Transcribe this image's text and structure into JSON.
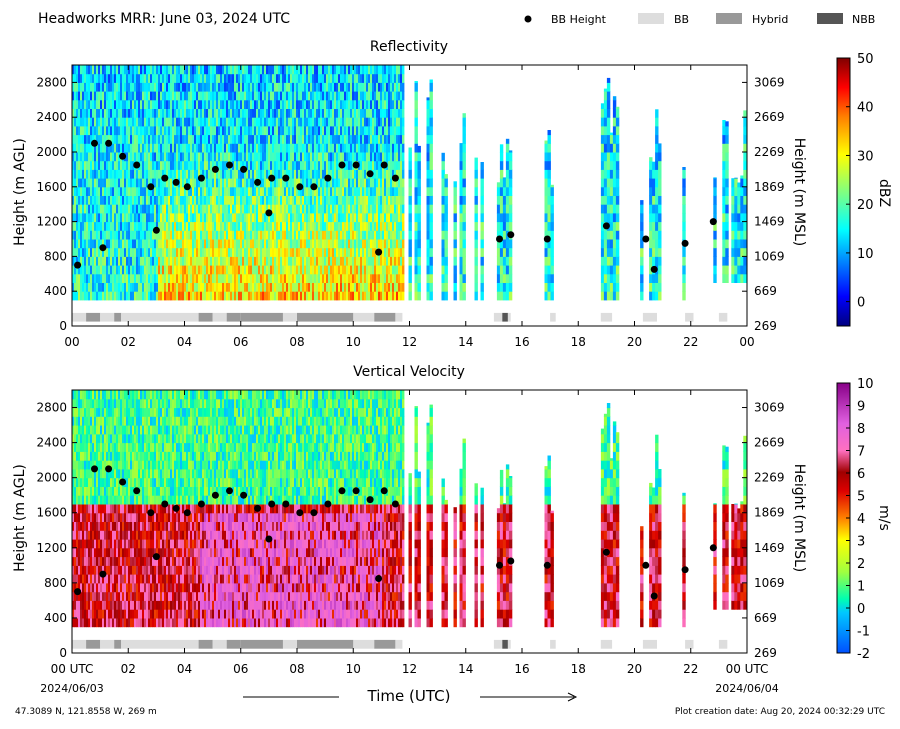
{
  "header": {
    "title": "Headworks MRR:  June 03, 2024 UTC",
    "legend": [
      {
        "label": "BB Height",
        "kind": "dot",
        "color": "#000000"
      },
      {
        "label": "BB",
        "kind": "box",
        "color": "#dddddd"
      },
      {
        "label": "Hybrid",
        "kind": "box",
        "color": "#999999"
      },
      {
        "label": "NBB",
        "kind": "box",
        "color": "#555555"
      }
    ]
  },
  "footer": {
    "location": "47.3089 N, 121.8558 W, 269 m",
    "creation": "Plot creation date: Aug 20, 2024 00:32:29 UTC",
    "xlabel": "Time (UTC)",
    "start_date": "2024/06/03",
    "end_date": "2024/06/04"
  },
  "chart_data": [
    {
      "type": "heatmap",
      "title": "Reflectivity",
      "xlabel": "Time (UTC)",
      "ylabel": "Height (m AGL)",
      "ylabel_right": "Height (m MSL)",
      "xlim": [
        0,
        24
      ],
      "ylim": [
        0,
        3000
      ],
      "x_ticks": [
        "00",
        "02",
        "04",
        "06",
        "08",
        "10",
        "12",
        "14",
        "16",
        "18",
        "20",
        "22",
        "00"
      ],
      "y_ticks": [
        0,
        400,
        800,
        1200,
        1600,
        2000,
        2400,
        2800
      ],
      "y_ticks_right": [
        269,
        669,
        1069,
        1469,
        1869,
        2269,
        2669,
        3069
      ],
      "colorbar": {
        "label": "dBZ",
        "min": -5,
        "max": 50,
        "ticks": [
          0,
          10,
          20,
          30,
          40,
          50
        ],
        "colormap": "jet"
      },
      "field": {
        "variable": "reflectivity",
        "base_value": 17,
        "height_gradient": -4,
        "core_value": 36,
        "core_top": 2000
      },
      "data_segments": [
        {
          "start": 0.0,
          "end": 11.75,
          "top": 3000,
          "bottom": 300,
          "coverage": "continuous"
        },
        {
          "start": 11.75,
          "end": 14.8,
          "top": 3000,
          "bottom": 300,
          "coverage": "sparse"
        },
        {
          "start": 15.0,
          "end": 15.7,
          "top": 2300,
          "bottom": 300,
          "coverage": "streaks"
        },
        {
          "start": 16.8,
          "end": 17.1,
          "top": 2300,
          "bottom": 300,
          "coverage": "streaks"
        },
        {
          "start": 18.7,
          "end": 19.4,
          "top": 2900,
          "bottom": 300,
          "coverage": "streaks"
        },
        {
          "start": 20.2,
          "end": 21.1,
          "top": 2600,
          "bottom": 300,
          "coverage": "streaks"
        },
        {
          "start": 21.7,
          "end": 22.1,
          "top": 2900,
          "bottom": 300,
          "coverage": "streaks"
        },
        {
          "start": 22.8,
          "end": 24.0,
          "top": 2900,
          "bottom": 500,
          "coverage": "streaks"
        }
      ]
    },
    {
      "type": "heatmap",
      "title": "Vertical Velocity",
      "xlabel": "Time (UTC)",
      "ylabel": "Height (m AGL)",
      "ylabel_right": "Height (m MSL)",
      "xlim": [
        0,
        24
      ],
      "ylim": [
        0,
        3000
      ],
      "x_ticks": [
        "00 UTC",
        "02",
        "04",
        "06",
        "08",
        "10",
        "12",
        "14",
        "16",
        "18",
        "20",
        "22",
        "00 UTC"
      ],
      "y_ticks": [
        0,
        400,
        800,
        1200,
        1600,
        2000,
        2400,
        2800
      ],
      "y_ticks_right": [
        269,
        669,
        1069,
        1469,
        1869,
        2269,
        2669,
        3069
      ],
      "colorbar": {
        "label": "m/s",
        "min": -2,
        "max": 10,
        "ticks": [
          -2,
          -1,
          0,
          1,
          2,
          3,
          4,
          5,
          6,
          7,
          8,
          9,
          10
        ],
        "colormap": "velocity"
      },
      "field": {
        "variable": "vertical velocity",
        "upper_value": 0.8,
        "lower_value": 6.0,
        "core_value": 7.2,
        "core_top": 1600
      },
      "data_segments": [
        {
          "start": 0.0,
          "end": 11.75,
          "top": 3000,
          "bottom": 300,
          "coverage": "continuous"
        },
        {
          "start": 11.75,
          "end": 14.8,
          "top": 3000,
          "bottom": 300,
          "coverage": "sparse"
        },
        {
          "start": 15.0,
          "end": 15.7,
          "top": 2300,
          "bottom": 300,
          "coverage": "streaks"
        },
        {
          "start": 16.8,
          "end": 17.1,
          "top": 2300,
          "bottom": 300,
          "coverage": "streaks"
        },
        {
          "start": 18.7,
          "end": 19.4,
          "top": 2900,
          "bottom": 300,
          "coverage": "streaks"
        },
        {
          "start": 20.2,
          "end": 21.1,
          "top": 2600,
          "bottom": 300,
          "coverage": "streaks"
        },
        {
          "start": 21.7,
          "end": 22.1,
          "top": 2900,
          "bottom": 300,
          "coverage": "streaks"
        },
        {
          "start": 22.8,
          "end": 24.0,
          "top": 2900,
          "bottom": 500,
          "coverage": "streaks"
        }
      ]
    }
  ],
  "bb_height": {
    "name": "BB Height",
    "x": [
      0.2,
      0.8,
      1.3,
      1.8,
      2.3,
      2.8,
      3.3,
      3.7,
      4.1,
      4.6,
      5.1,
      5.6,
      6.1,
      6.6,
      7.1,
      7.6,
      8.1,
      8.6,
      9.1,
      9.6,
      10.1,
      10.6,
      11.1,
      11.5,
      1.1,
      3.0,
      7.0,
      10.9,
      15.2,
      15.6,
      16.9,
      19.0,
      20.4,
      20.7,
      21.8,
      22.8
    ],
    "y": [
      700,
      2100,
      2100,
      1950,
      1850,
      1600,
      1700,
      1650,
      1600,
      1700,
      1800,
      1850,
      1800,
      1650,
      1700,
      1700,
      1600,
      1600,
      1700,
      1850,
      1850,
      1750,
      1850,
      1700,
      900,
      1100,
      1300,
      850,
      1000,
      1050,
      1000,
      1150,
      1000,
      650,
      950,
      1200
    ]
  },
  "bb_type": [
    {
      "start": 0.0,
      "end": 0.5,
      "type": "BB"
    },
    {
      "start": 0.5,
      "end": 1.0,
      "type": "Hybrid"
    },
    {
      "start": 1.0,
      "end": 1.5,
      "type": "BB"
    },
    {
      "start": 1.5,
      "end": 1.75,
      "type": "Hybrid"
    },
    {
      "start": 1.75,
      "end": 4.5,
      "type": "BB"
    },
    {
      "start": 4.5,
      "end": 5.0,
      "type": "Hybrid"
    },
    {
      "start": 5.0,
      "end": 5.5,
      "type": "BB"
    },
    {
      "start": 5.5,
      "end": 6.0,
      "type": "Hybrid"
    },
    {
      "start": 6.0,
      "end": 7.5,
      "type": "Hybrid"
    },
    {
      "start": 7.5,
      "end": 8.0,
      "type": "BB"
    },
    {
      "start": 8.0,
      "end": 10.0,
      "type": "Hybrid"
    },
    {
      "start": 10.0,
      "end": 10.75,
      "type": "BB"
    },
    {
      "start": 10.75,
      "end": 11.5,
      "type": "Hybrid"
    },
    {
      "start": 11.5,
      "end": 11.75,
      "type": "BB"
    },
    {
      "start": 15.0,
      "end": 15.3,
      "type": "BB"
    },
    {
      "start": 15.3,
      "end": 15.5,
      "type": "NBB"
    },
    {
      "start": 15.5,
      "end": 15.6,
      "type": "BB"
    },
    {
      "start": 17.0,
      "end": 17.2,
      "type": "BB"
    },
    {
      "start": 18.8,
      "end": 19.2,
      "type": "BB"
    },
    {
      "start": 20.3,
      "end": 20.8,
      "type": "BB"
    },
    {
      "start": 21.8,
      "end": 22.1,
      "type": "BB"
    },
    {
      "start": 23.0,
      "end": 23.3,
      "type": "BB"
    }
  ],
  "colors": {
    "BB": "#dddddd",
    "Hybrid": "#999999",
    "NBB": "#555555"
  }
}
